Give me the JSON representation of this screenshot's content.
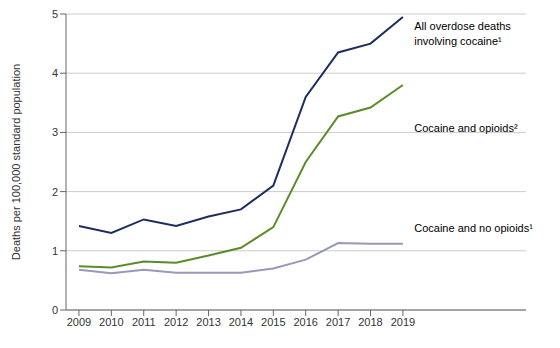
{
  "chart_data": {
    "type": "line",
    "x": [
      2009,
      2010,
      2011,
      2012,
      2013,
      2014,
      2015,
      2016,
      2017,
      2018,
      2019
    ],
    "series": [
      {
        "color": "#1c2d5e",
        "values": [
          1.42,
          1.3,
          1.53,
          1.42,
          1.58,
          1.7,
          2.1,
          3.6,
          4.35,
          4.5,
          4.95
        ]
      },
      {
        "color": "#5a8c28",
        "values": [
          0.74,
          0.72,
          0.82,
          0.8,
          0.92,
          1.05,
          1.4,
          2.5,
          3.27,
          3.42,
          3.8
        ]
      },
      {
        "color": "#9898b8",
        "values": [
          0.68,
          0.62,
          0.68,
          0.63,
          0.63,
          0.63,
          0.7,
          0.85,
          1.13,
          1.12,
          1.12
        ]
      }
    ],
    "ylabel": "Deaths per 100,000 standard population",
    "xlim": [
      2008.6,
      2022.8
    ],
    "xticks": [
      2009,
      2010,
      2011,
      2012,
      2013,
      2014,
      2015,
      2016,
      2017,
      2018,
      2019
    ],
    "ylim": [
      0,
      5
    ],
    "yticks": [
      0,
      1,
      2,
      3,
      4,
      5
    ],
    "grid": true,
    "annotations": [
      {
        "text": "All overdose deaths",
        "x": 2019.35,
        "y": 4.8
      },
      {
        "text": "involving cocaine¹",
        "x": 2019.35,
        "y": 4.55
      },
      {
        "text": "Cocaine and opioids²",
        "x": 2019.35,
        "y": 3.08
      },
      {
        "text": "Cocaine and no opioids¹",
        "x": 2019.35,
        "y": 1.38
      }
    ]
  }
}
